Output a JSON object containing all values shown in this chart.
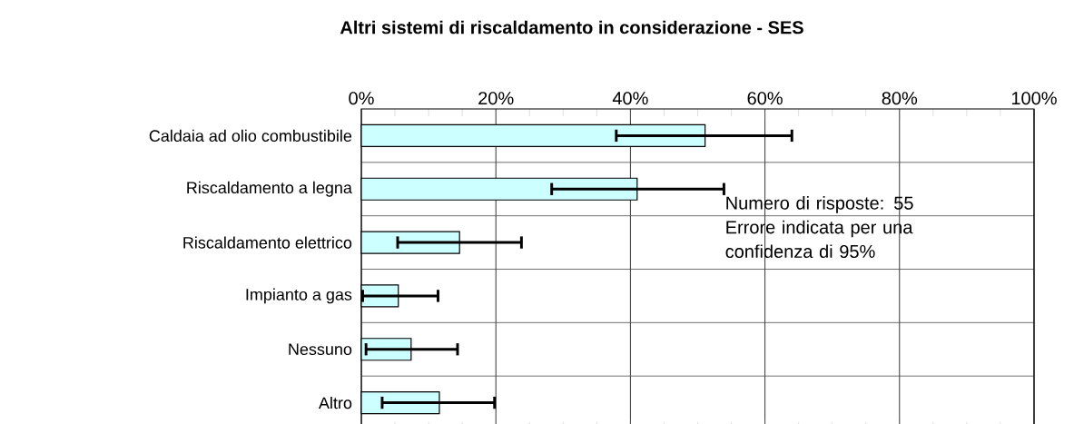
{
  "chart_data": {
    "type": "bar",
    "orientation": "horizontal",
    "title": "Altri sistemi di riscaldamento in considerazione - SES",
    "categories": [
      "Caldaia ad olio combustibile",
      "Riscaldamento a legna",
      "Riscaldamento elettrico",
      "Impianto a gas",
      "Nessuno",
      "Altro"
    ],
    "values": [
      51.1,
      41.0,
      14.6,
      5.5,
      7.4,
      11.6
    ],
    "errors": [
      [
        37.7,
        64.2
      ],
      [
        28.1,
        54.1
      ],
      [
        5.2,
        24.0
      ],
      [
        0,
        11.6
      ],
      [
        0.5,
        14.5
      ],
      [
        2.9,
        20.0
      ]
    ],
    "color": "#ccffff",
    "xlim": [
      0,
      100
    ],
    "xticks": [
      {
        "value": 0,
        "label": "0%"
      },
      {
        "value": 20,
        "label": "20%"
      },
      {
        "value": 40,
        "label": "40%"
      },
      {
        "value": 60,
        "label": "60%"
      },
      {
        "value": 80,
        "label": "80%"
      },
      {
        "value": 100,
        "label": "100%"
      }
    ],
    "grid": true,
    "annotations": [
      "Numero di risposte: 55",
      "Errore indicata per una confidenza di 95%"
    ]
  }
}
